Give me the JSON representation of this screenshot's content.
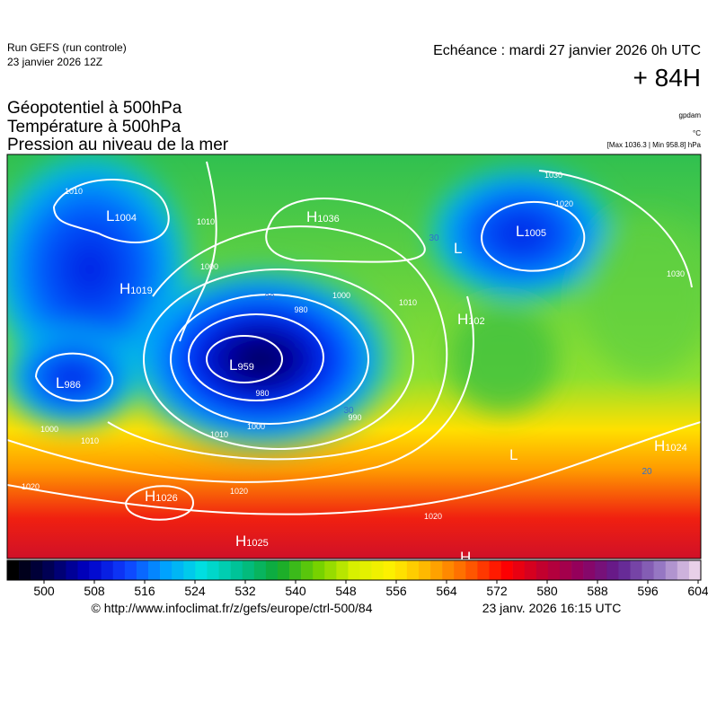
{
  "header": {
    "run": "Run GEFS (run controle)",
    "run_date": "23 janvier 2026 12Z",
    "valid": "Echéance : mardi 27 janvier 2026 0h UTC",
    "lead": "+ 84H",
    "fields": [
      "Géopotentiel à 500hPa",
      "Température à 500hPa",
      "Pression au niveau de la mer"
    ],
    "unit_geopotential": "gpdam",
    "unit_temperature": "°C",
    "pressure_range": "[Max 1036.3 | Min 958.8] hPa"
  },
  "centers": [
    {
      "letter": "L",
      "value": 1004
    },
    {
      "letter": "H",
      "value": 1019
    },
    {
      "letter": "L",
      "value": 986
    },
    {
      "letter": "L",
      "value": 959
    },
    {
      "letter": "H",
      "value": 1036
    },
    {
      "letter": "L"
    },
    {
      "letter": "L",
      "value": 1005
    },
    {
      "letter": "H",
      "value": 102
    },
    {
      "letter": "L"
    },
    {
      "letter": "H",
      "value": 1024
    },
    {
      "letter": "H",
      "value": 1026
    },
    {
      "letter": "H",
      "value": 1025
    },
    {
      "letter": "H"
    }
  ],
  "isobar_labels": [
    1010,
    1010,
    1000,
    980,
    980,
    990,
    1000,
    1010,
    1000,
    1010,
    1020,
    1020,
    1020,
    1030,
    1030,
    1020,
    1010,
    1000
  ],
  "temperature_labels": [
    30,
    30,
    20,
    30
  ],
  "colorbar": {
    "ticks": [
      500,
      508,
      516,
      524,
      532,
      540,
      548,
      556,
      564,
      572,
      580,
      588,
      596,
      604
    ]
  },
  "footer": {
    "source": "© http://www.infoclimat.fr/z/gefs/europe/ctrl-500/84",
    "generated": "23 janv. 2026 16:15 UTC"
  }
}
